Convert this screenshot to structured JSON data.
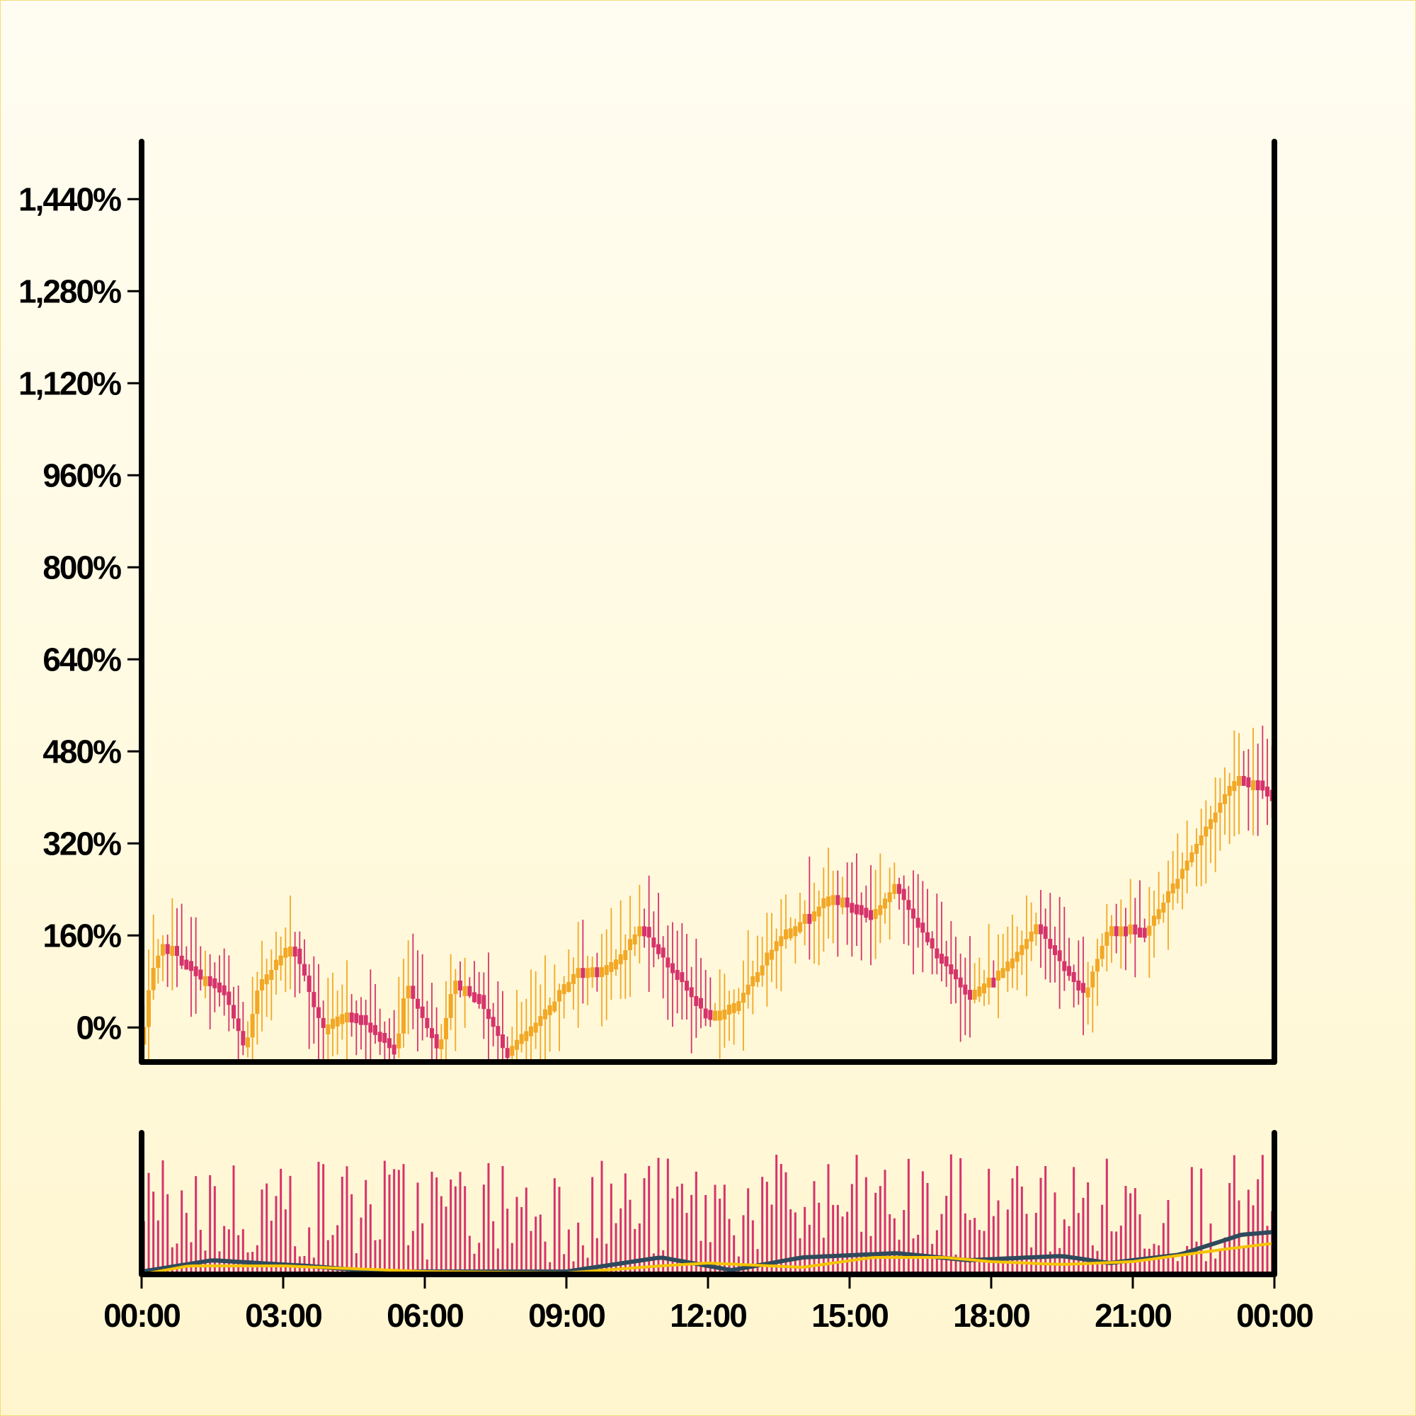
{
  "chart_data": [
    {
      "type": "candlestick",
      "title": "",
      "xlabel": "",
      "ylabel": "",
      "y_tick_labels": [
        "0%",
        "160%",
        "320%",
        "480%",
        "640%",
        "800%",
        "960%",
        "1,120%",
        "1,280%",
        "1,440%"
      ],
      "y_ticks": [
        0,
        160,
        320,
        480,
        640,
        800,
        960,
        1120,
        1280,
        1440
      ],
      "ylim": [
        -60,
        1540
      ],
      "x_range_hours": [
        0,
        24
      ],
      "colors": {
        "up": "#f2a825",
        "down": "#d6336c"
      },
      "candle_count": 240,
      "grid": false,
      "close_points": [
        [
          0.0,
          -30
        ],
        [
          0.2,
          90
        ],
        [
          0.5,
          150
        ],
        [
          1.1,
          100
        ],
        [
          1.7,
          70
        ],
        [
          2.2,
          -40
        ],
        [
          2.5,
          80
        ],
        [
          3.2,
          150
        ],
        [
          3.8,
          0
        ],
        [
          4.5,
          30
        ],
        [
          5.4,
          -40
        ],
        [
          5.6,
          80
        ],
        [
          6.3,
          -40
        ],
        [
          6.6,
          80
        ],
        [
          7.1,
          60
        ],
        [
          7.7,
          -40
        ],
        [
          8.4,
          10
        ],
        [
          9.2,
          100
        ],
        [
          10.0,
          110
        ],
        [
          10.6,
          180
        ],
        [
          11.0,
          130
        ],
        [
          12.0,
          20
        ],
        [
          12.7,
          50
        ],
        [
          13.5,
          160
        ],
        [
          14.0,
          190
        ],
        [
          14.6,
          230
        ],
        [
          15.5,
          200
        ],
        [
          16.0,
          250
        ],
        [
          16.5,
          170
        ],
        [
          17.3,
          80
        ],
        [
          17.6,
          60
        ],
        [
          18.2,
          100
        ],
        [
          19.0,
          180
        ],
        [
          19.5,
          110
        ],
        [
          20.0,
          60
        ],
        [
          20.5,
          180
        ],
        [
          21.3,
          170
        ],
        [
          22.0,
          270
        ],
        [
          23.2,
          440
        ],
        [
          23.8,
          420
        ],
        [
          24.0,
          380
        ]
      ]
    },
    {
      "type": "bar",
      "title": "",
      "x_tick_labels": [
        "00:00",
        "03:00",
        "06:00",
        "09:00",
        "12:00",
        "15:00",
        "18:00",
        "21:00",
        "00:00"
      ],
      "x_ticks_hours": [
        0,
        3,
        6,
        9,
        12,
        15,
        18,
        21,
        24
      ],
      "colors": {
        "bars": "#d6336c",
        "line1": "#2e4a5c",
        "line2": "#f5c400"
      },
      "series": [
        {
          "kind": "line",
          "color": "#2e4a5c",
          "values": [
            [
              0,
              2
            ],
            [
              1.5,
              10
            ],
            [
              3.5,
              6
            ],
            [
              5,
              2
            ],
            [
              7.5,
              2
            ],
            [
              9,
              2
            ],
            [
              11,
              12
            ],
            [
              12.5,
              3
            ],
            [
              14,
              12
            ],
            [
              16,
              15
            ],
            [
              17.5,
              10
            ],
            [
              19.5,
              13
            ],
            [
              20.5,
              8
            ],
            [
              22,
              14
            ],
            [
              23.3,
              28
            ],
            [
              24,
              30
            ]
          ]
        },
        {
          "kind": "line",
          "color": "#f5c400",
          "values": [
            [
              0,
              0
            ],
            [
              1,
              6
            ],
            [
              3,
              6
            ],
            [
              6,
              2
            ],
            [
              9,
              1
            ],
            [
              11,
              6
            ],
            [
              12,
              8
            ],
            [
              14,
              5
            ],
            [
              15.5,
              12
            ],
            [
              17,
              12
            ],
            [
              18,
              9
            ],
            [
              19.5,
              7
            ],
            [
              21,
              9
            ],
            [
              23,
              18
            ],
            [
              24,
              22
            ]
          ]
        }
      ]
    }
  ]
}
